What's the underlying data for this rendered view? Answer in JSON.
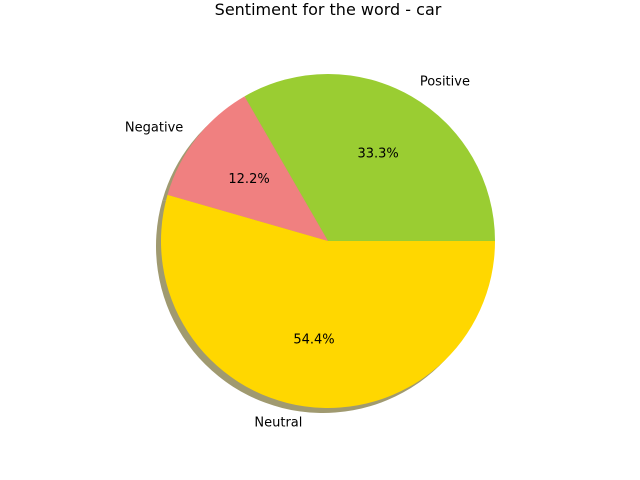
{
  "chart_data": {
    "type": "pie",
    "title": "Sentiment for the word - car",
    "slices": [
      {
        "label": "Positive",
        "value": 33.3,
        "pct_label": "33.3%",
        "color": "#9acd32"
      },
      {
        "label": "Negative",
        "value": 12.2,
        "pct_label": "12.2%",
        "color": "#f08080"
      },
      {
        "label": "Neutral",
        "value": 54.4,
        "pct_label": "54.4%",
        "color": "#ffd700"
      }
    ],
    "start_angle_deg": 0,
    "direction": "counterclockwise",
    "shadow": true,
    "shadow_color": "#a09a70"
  }
}
